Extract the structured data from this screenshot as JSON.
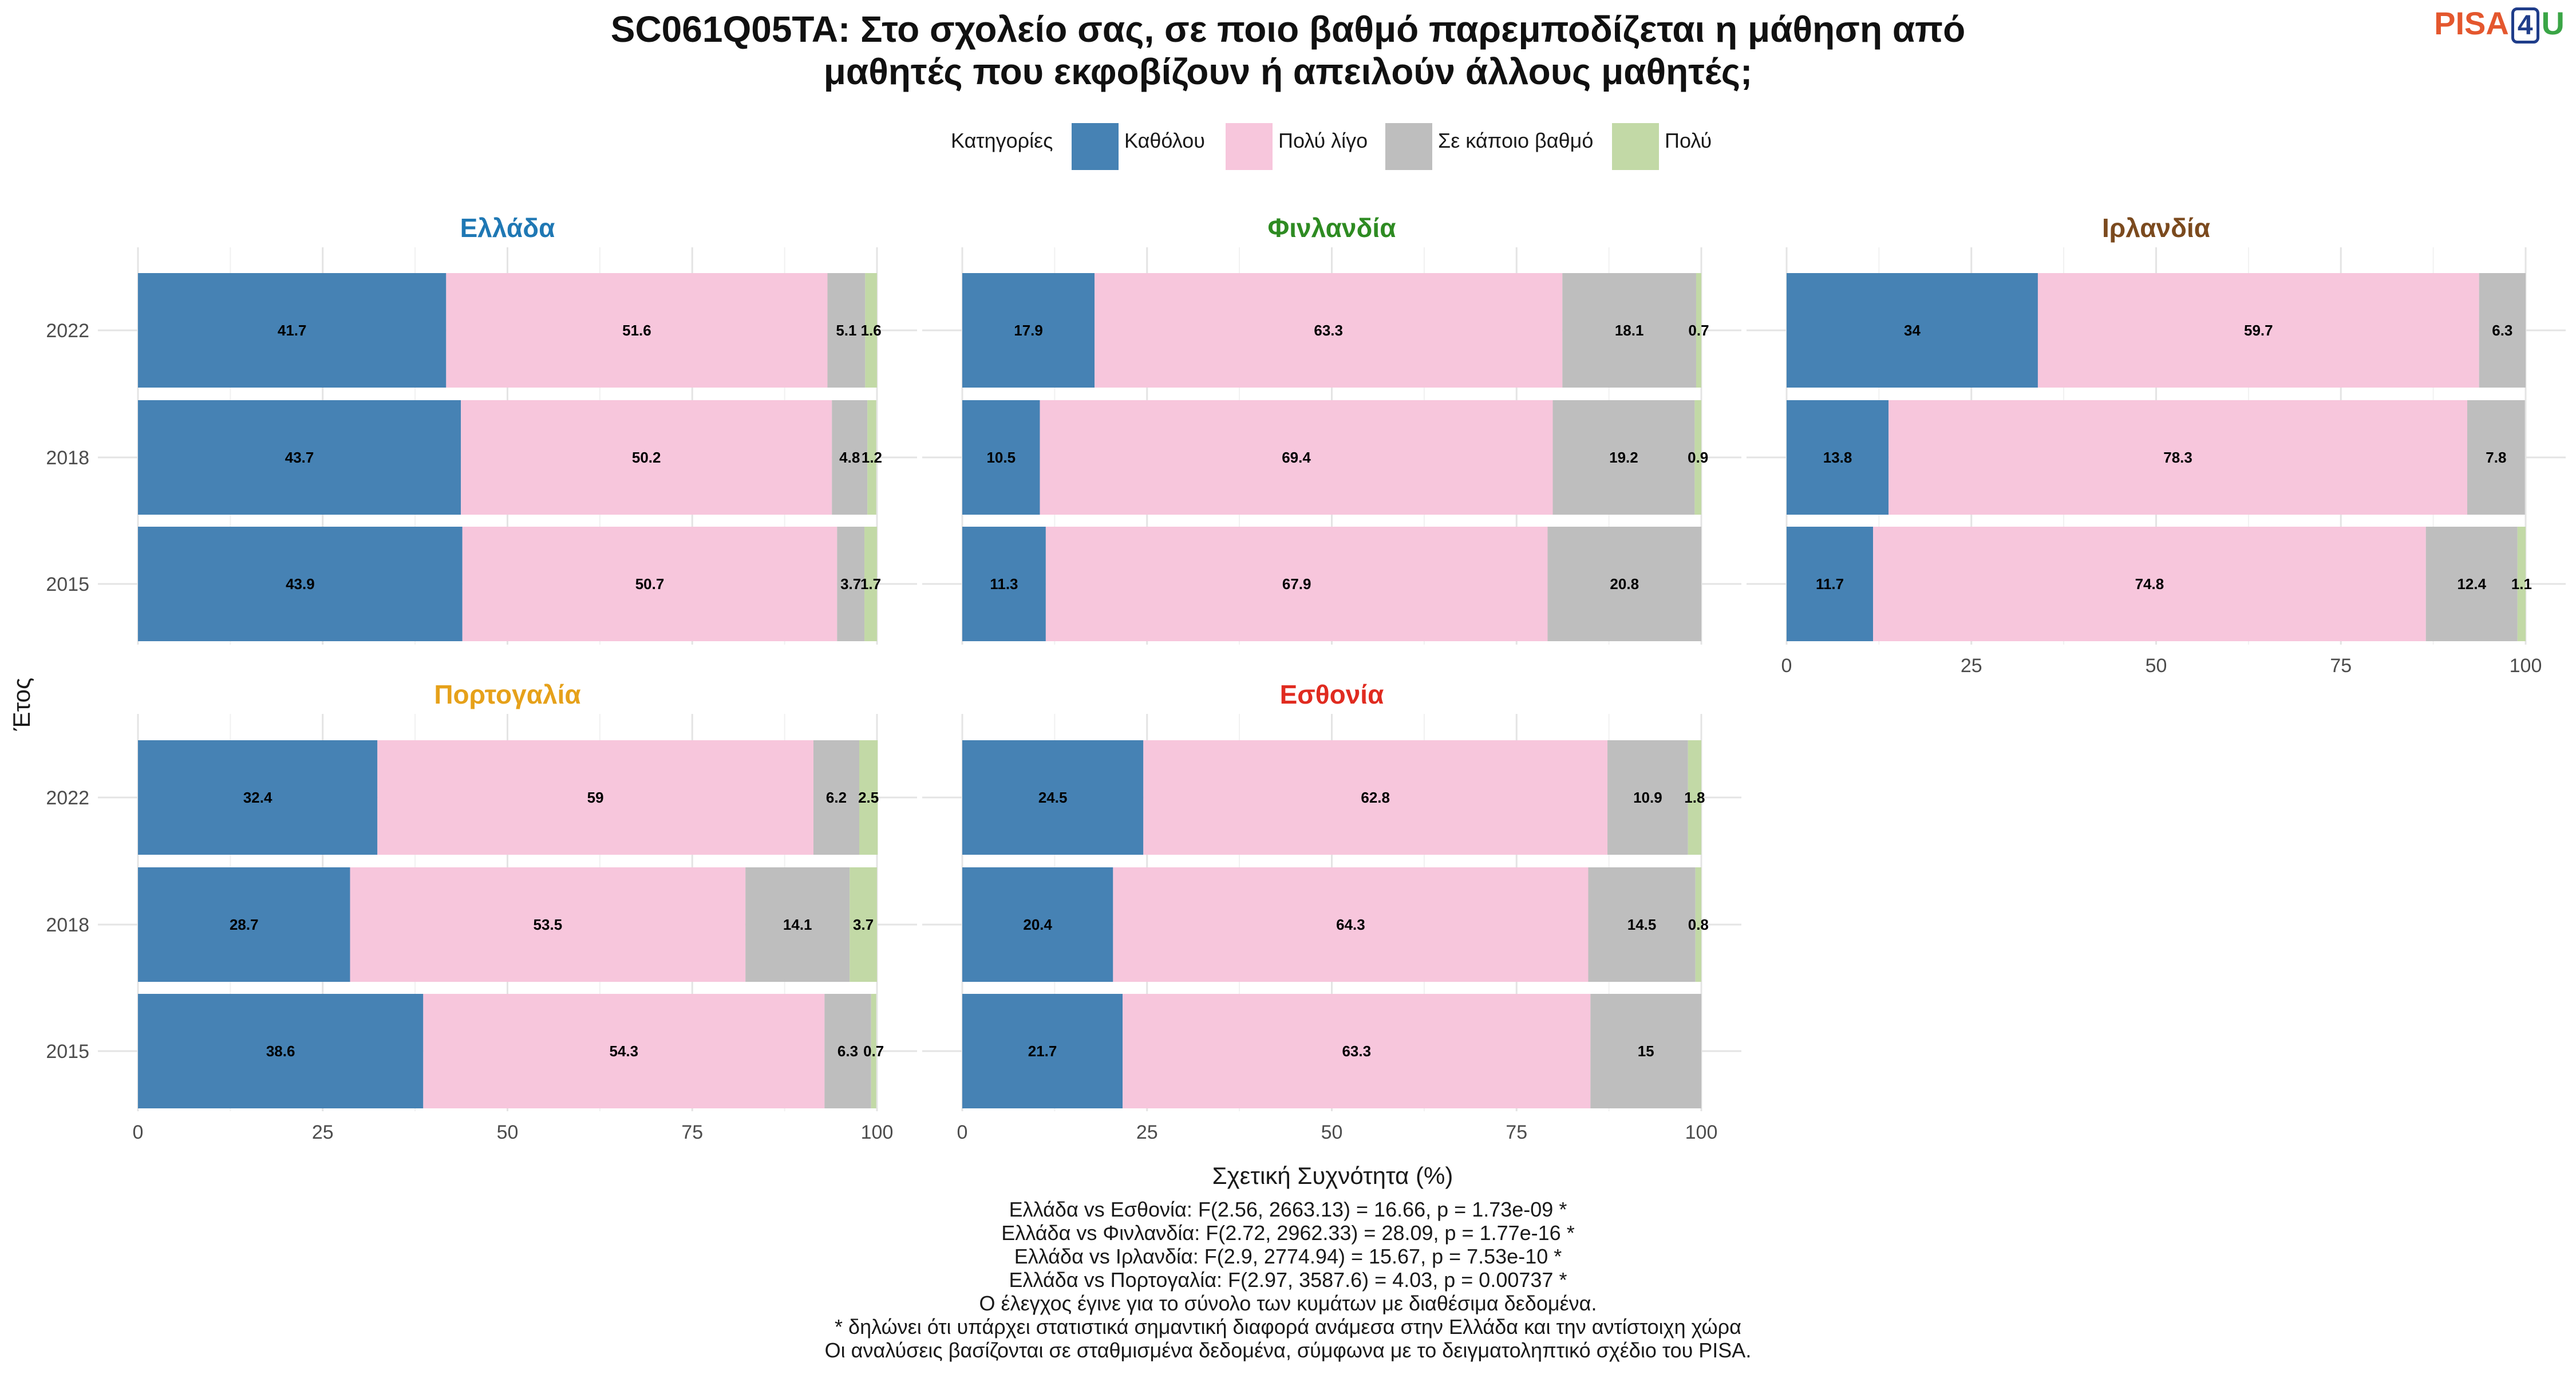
{
  "title_lines": [
    "SC061Q05TA: Στο σχολείο σας, σε ποιο βαθμό παρεμποδίζεται η μάθηση από",
    "μαθητές που εκφοβίζουν ή απειλούν άλλους μαθητές;"
  ],
  "logo": {
    "left": "PISA",
    "middle": "4",
    "right": "U"
  },
  "footnote_lines": [
    "Ελλάδα vs Εσθονία: F(2.56, 2663.13) = 16.66, p = 1.73e-09 *",
    "Ελλάδα vs Φινλανδία: F(2.72, 2962.33) = 28.09, p = 1.77e-16 *",
    "Ελλάδα vs Ιρλανδία: F(2.9, 2774.94) = 15.67, p = 7.53e-10 *",
    "Ελλάδα vs Πορτογαλία: F(2.97, 3587.6) = 4.03, p = 0.00737 *",
    "Ο έλεγχος έγινε για το σύνολο των κυμάτων με διαθέσιμα δεδομένα.",
    "* δηλώνει ότι υπάρχει στατιστικά σημαντική διαφορά ανάμεσα στην Ελλάδα και την αντίστοιχη χώρα",
    "Οι αναλύσεις βασίζονται σε σταθμισμένα δεδομένα, σύμφωνα με το δειγματοληπτικό σχέδιο του PISA."
  ],
  "chart_data": {
    "type": "bar",
    "orientation": "horizontal",
    "stacked": true,
    "xlabel": "Σχετική Συχνότητα (%)",
    "ylabel": "Έτος",
    "xlim": [
      0,
      100
    ],
    "xticks": [
      0,
      25,
      50,
      75,
      100
    ],
    "legend": {
      "title": "Κατηγορίες",
      "position": "top",
      "items": [
        {
          "name": "Καθόλου",
          "color": "#4682b4"
        },
        {
          "name": "Πολύ λίγο",
          "color": "#f7c6dc"
        },
        {
          "name": "Σε κάποιο βαθμό",
          "color": "#bebebe"
        },
        {
          "name": "Πολύ",
          "color": "#c2d9a6"
        }
      ]
    },
    "categories": [
      "2022",
      "2018",
      "2015"
    ],
    "panels": [
      {
        "name": "Ελλάδα",
        "color": "#1f78b4",
        "bars": [
          {
            "year": "2022",
            "values": [
              41.7,
              51.6,
              5.1,
              1.6
            ],
            "labels": [
              "41.7",
              "51.6",
              "5.1",
              "1.6"
            ]
          },
          {
            "year": "2018",
            "values": [
              43.7,
              50.2,
              4.8,
              1.2
            ],
            "labels": [
              "43.7",
              "50.2",
              "4.8",
              "1.2"
            ]
          },
          {
            "year": "2015",
            "values": [
              43.9,
              50.7,
              3.7,
              1.7
            ],
            "labels": [
              "43.9",
              "50.7",
              "3.7",
              "1.7"
            ]
          }
        ]
      },
      {
        "name": "Φινλανδία",
        "color": "#2e8b22",
        "bars": [
          {
            "year": "2022",
            "values": [
              17.9,
              63.3,
              18.1,
              0.7
            ],
            "labels": [
              "17.9",
              "63.3",
              "18.1",
              "0.7"
            ]
          },
          {
            "year": "2018",
            "values": [
              10.5,
              69.4,
              19.2,
              0.9
            ],
            "labels": [
              "10.5",
              "69.4",
              "19.2",
              "0.9"
            ]
          },
          {
            "year": "2015",
            "values": [
              11.3,
              67.9,
              20.8,
              0
            ],
            "labels": [
              "11.3",
              "67.9",
              "20.8",
              ""
            ]
          }
        ]
      },
      {
        "name": "Ιρλανδία",
        "color": "#7b4a1e",
        "bars": [
          {
            "year": "2022",
            "values": [
              34,
              59.7,
              6.3,
              0
            ],
            "labels": [
              "34",
              "59.7",
              "6.3",
              ""
            ]
          },
          {
            "year": "2018",
            "values": [
              13.8,
              78.3,
              7.8,
              0
            ],
            "labels": [
              "13.8",
              "78.3",
              "7.8",
              ""
            ]
          },
          {
            "year": "2015",
            "values": [
              11.7,
              74.8,
              12.4,
              1.1
            ],
            "labels": [
              "11.7",
              "74.8",
              "12.4",
              "1.1"
            ]
          }
        ]
      },
      {
        "name": "Πορτογαλία",
        "color": "#e6a11a",
        "bars": [
          {
            "year": "2022",
            "values": [
              32.4,
              59,
              6.2,
              2.5
            ],
            "labels": [
              "32.4",
              "59",
              "6.2",
              "2.5"
            ]
          },
          {
            "year": "2018",
            "values": [
              28.7,
              53.5,
              14.1,
              3.7
            ],
            "labels": [
              "28.7",
              "53.5",
              "14.1",
              "3.7"
            ]
          },
          {
            "year": "2015",
            "values": [
              38.6,
              54.3,
              6.3,
              0.7
            ],
            "labels": [
              "38.6",
              "54.3",
              "6.3",
              "0.7"
            ]
          }
        ]
      },
      {
        "name": "Εσθονία",
        "color": "#e02b20",
        "bars": [
          {
            "year": "2022",
            "values": [
              24.5,
              62.8,
              10.9,
              1.8
            ],
            "labels": [
              "24.5",
              "62.8",
              "10.9",
              "1.8"
            ]
          },
          {
            "year": "2018",
            "values": [
              20.4,
              64.3,
              14.5,
              0.8
            ],
            "labels": [
              "20.4",
              "64.3",
              "14.5",
              "0.8"
            ]
          },
          {
            "year": "2015",
            "values": [
              21.7,
              63.3,
              15,
              0
            ],
            "labels": [
              "21.7",
              "63.3",
              "15",
              ""
            ]
          }
        ]
      }
    ]
  }
}
